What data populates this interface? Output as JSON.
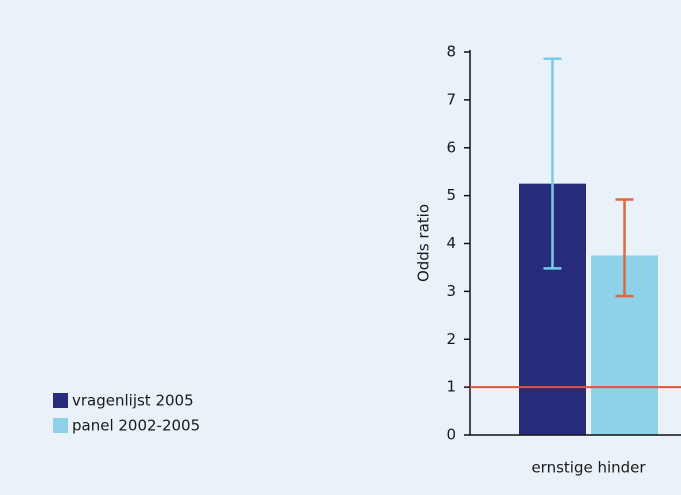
{
  "chart_data": {
    "type": "bar",
    "y_label": "Odds ratio",
    "categories": [
      "ernstige hinder"
    ],
    "series": [
      {
        "name": "vragenlijst 2005",
        "color": "#272c7a",
        "error_color": "#7ccbe6",
        "values": [
          5.25
        ],
        "lower": [
          3.48
        ],
        "upper": [
          7.86
        ]
      },
      {
        "name": "panel 2002-2005",
        "color": "#8fd1e8",
        "error_color": "#e0683c",
        "values": [
          3.75
        ],
        "lower": [
          2.9
        ],
        "upper": [
          4.92
        ]
      }
    ],
    "reference_line": {
      "value": 1,
      "color": "#e8503a"
    },
    "ylim": [
      0,
      8
    ],
    "yticks": [
      0,
      1,
      2,
      3,
      4,
      5,
      6,
      7,
      8
    ]
  }
}
